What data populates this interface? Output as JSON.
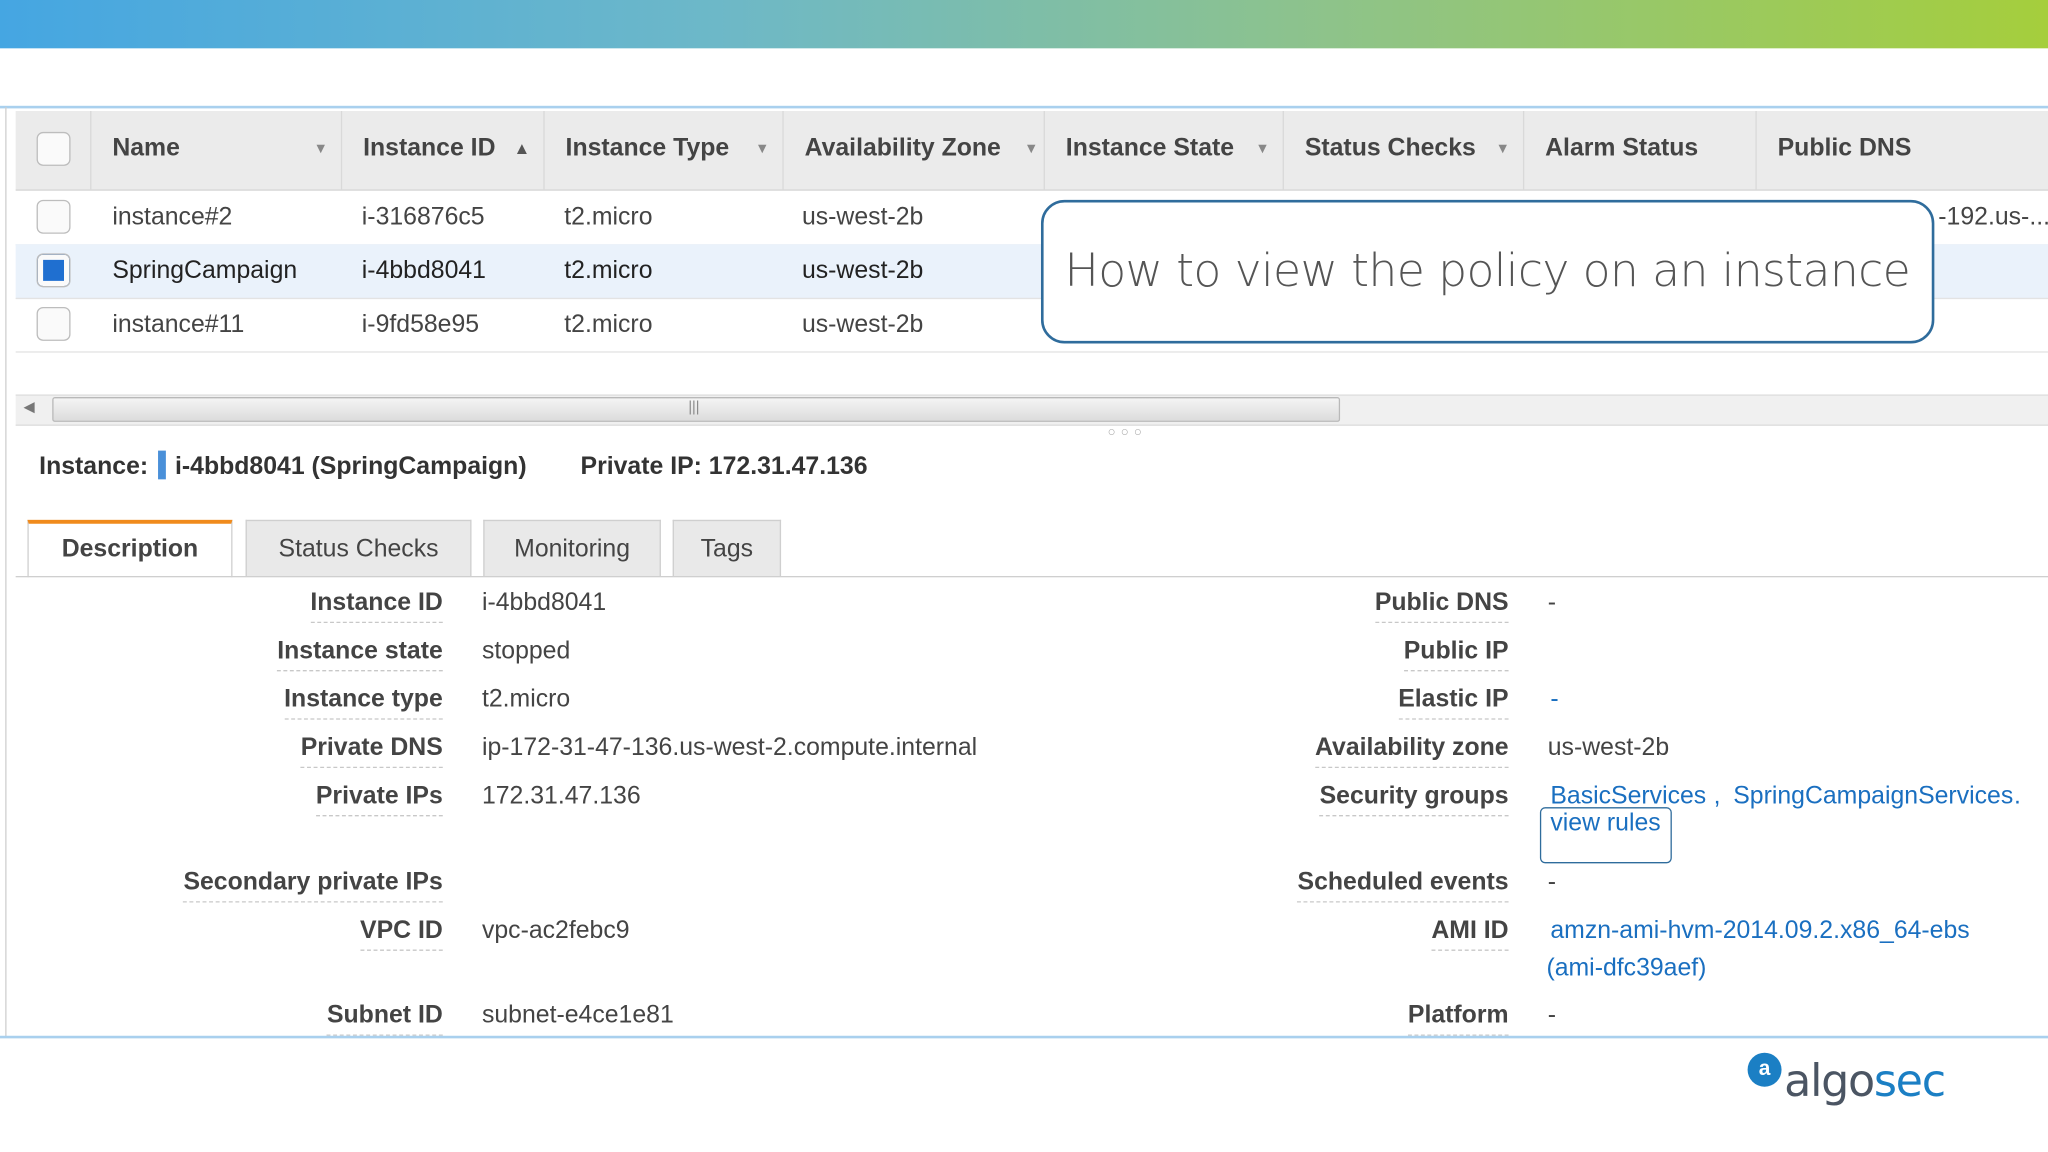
{
  "table": {
    "columns": [
      {
        "label": "Name",
        "sort": "dropdown"
      },
      {
        "label": "Instance ID",
        "sort": "ascending"
      },
      {
        "label": "Instance Type",
        "sort": "dropdown"
      },
      {
        "label": "Availability Zone",
        "sort": "dropdown"
      },
      {
        "label": "Instance State",
        "sort": "dropdown"
      },
      {
        "label": "Status Checks",
        "sort": "dropdown"
      },
      {
        "label": "Alarm Status",
        "sort": ""
      },
      {
        "label": "Public DNS",
        "sort": ""
      }
    ],
    "rows": [
      {
        "name": "instance#2",
        "id": "i-316876c5",
        "type": "t2.micro",
        "zone": "us-west-2b",
        "dns": "-192.us-...",
        "selected": false
      },
      {
        "name": "SpringCampaign",
        "id": "i-4bbd8041",
        "type": "t2.micro",
        "zone": "us-west-2b",
        "dns": "",
        "selected": true
      },
      {
        "name": "instance#11",
        "id": "i-9fd58e95",
        "type": "t2.micro",
        "zone": "us-west-2b",
        "dns": "",
        "selected": false
      }
    ]
  },
  "callout": "How to view the policy on an instance",
  "instance_header": {
    "label": "Instance:",
    "value": "i-4bbd8041 (SpringCampaign)",
    "private_ip": "Private IP: 172.31.47.136"
  },
  "tabs": [
    "Description",
    "Status Checks",
    "Monitoring",
    "Tags"
  ],
  "details_left": [
    {
      "label": "Instance ID",
      "value": "i-4bbd8041"
    },
    {
      "label": "Instance state",
      "value": "stopped"
    },
    {
      "label": "Instance type",
      "value": "t2.micro"
    },
    {
      "label": "Private DNS",
      "value": "ip-172-31-47-136.us-west-2.compute.internal"
    },
    {
      "label": "Private IPs",
      "value": "172.31.47.136"
    },
    {
      "label": "Secondary private IPs",
      "value": ""
    },
    {
      "label": "VPC ID",
      "value": "vpc-ac2febc9"
    },
    {
      "label": "Subnet ID",
      "value": "subnet-e4ce1e81"
    }
  ],
  "details_right": [
    {
      "label": "Public DNS",
      "value": "-"
    },
    {
      "label": "Public IP",
      "value": ""
    },
    {
      "label": "Elastic IP",
      "value": "-"
    },
    {
      "label": "Availability zone",
      "value": "us-west-2b"
    },
    {
      "label": "Security groups",
      "value": "",
      "links": [
        "BasicServices",
        "SpringCampaignServices"
      ],
      "view_rules": "view rules"
    },
    {
      "label": "Scheduled events",
      "value": "-"
    },
    {
      "label": "AMI ID",
      "value": "amzn-ami-hvm-2014.09.2.x86_64-ebs",
      "value2": "(ami-dfc39aef)"
    },
    {
      "label": "Platform",
      "value": "-"
    }
  ],
  "logo": "algosec",
  "colors": {
    "accent": "#f08b1d",
    "link": "#1a6fc0",
    "selected_row": "#eaf2fb",
    "callout_border": "#2f6c9c"
  }
}
